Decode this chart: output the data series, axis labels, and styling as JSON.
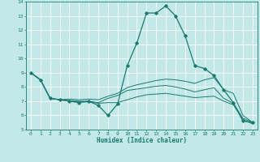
{
  "xlabel": "Humidex (Indice chaleur)",
  "ylabel": "",
  "xlim": [
    -0.5,
    23.5
  ],
  "ylim": [
    5,
    14
  ],
  "yticks": [
    5,
    6,
    7,
    8,
    9,
    10,
    11,
    12,
    13,
    14
  ],
  "xticks": [
    0,
    1,
    2,
    3,
    4,
    5,
    6,
    7,
    8,
    9,
    10,
    11,
    12,
    13,
    14,
    15,
    16,
    17,
    18,
    19,
    20,
    21,
    22,
    23
  ],
  "bg_color": "#c2e8e8",
  "line_color": "#1a7a6e",
  "grid_color": "#ffffff",
  "lines": [
    {
      "x": [
        0,
        1,
        2,
        3,
        4,
        5,
        6,
        7,
        8,
        9,
        10,
        11,
        12,
        13,
        14,
        15,
        16,
        17,
        18,
        19,
        20,
        21,
        22,
        23
      ],
      "y": [
        9.0,
        8.5,
        7.2,
        7.1,
        7.0,
        6.9,
        7.0,
        6.7,
        6.0,
        6.8,
        9.5,
        11.1,
        13.2,
        13.2,
        13.7,
        13.0,
        11.6,
        9.5,
        9.3,
        8.8,
        7.8,
        6.9,
        5.6,
        5.5
      ],
      "marker": "D",
      "linewidth": 0.9,
      "markersize": 1.8
    },
    {
      "x": [
        0,
        1,
        2,
        3,
        4,
        5,
        6,
        7,
        8,
        9,
        10,
        11,
        12,
        13,
        14,
        15,
        16,
        17,
        18,
        19,
        20,
        21,
        22,
        23
      ],
      "y": [
        9.0,
        8.5,
        7.2,
        7.1,
        7.15,
        7.1,
        7.15,
        7.1,
        7.35,
        7.55,
        7.95,
        8.15,
        8.3,
        8.45,
        8.55,
        8.5,
        8.4,
        8.25,
        8.5,
        8.65,
        7.8,
        7.55,
        6.0,
        5.5
      ],
      "marker": null,
      "linewidth": 0.7,
      "markersize": 0
    },
    {
      "x": [
        0,
        1,
        2,
        3,
        4,
        5,
        6,
        7,
        8,
        9,
        10,
        11,
        12,
        13,
        14,
        15,
        16,
        17,
        18,
        19,
        20,
        21,
        22,
        23
      ],
      "y": [
        9.0,
        8.5,
        7.2,
        7.1,
        7.05,
        7.0,
        7.0,
        6.9,
        7.2,
        7.4,
        7.75,
        7.85,
        7.95,
        8.05,
        8.1,
        8.0,
        7.85,
        7.65,
        7.8,
        7.95,
        7.2,
        6.85,
        5.8,
        5.5
      ],
      "marker": null,
      "linewidth": 0.7,
      "markersize": 0
    },
    {
      "x": [
        0,
        1,
        2,
        3,
        4,
        5,
        6,
        7,
        8,
        9,
        10,
        11,
        12,
        13,
        14,
        15,
        16,
        17,
        18,
        19,
        20,
        21,
        22,
        23
      ],
      "y": [
        9.0,
        8.5,
        7.2,
        7.1,
        7.0,
        6.95,
        6.95,
        6.85,
        6.9,
        6.9,
        7.1,
        7.3,
        7.45,
        7.5,
        7.55,
        7.45,
        7.35,
        7.25,
        7.3,
        7.35,
        7.0,
        6.75,
        5.7,
        5.4
      ],
      "marker": null,
      "linewidth": 0.7,
      "markersize": 0
    }
  ]
}
